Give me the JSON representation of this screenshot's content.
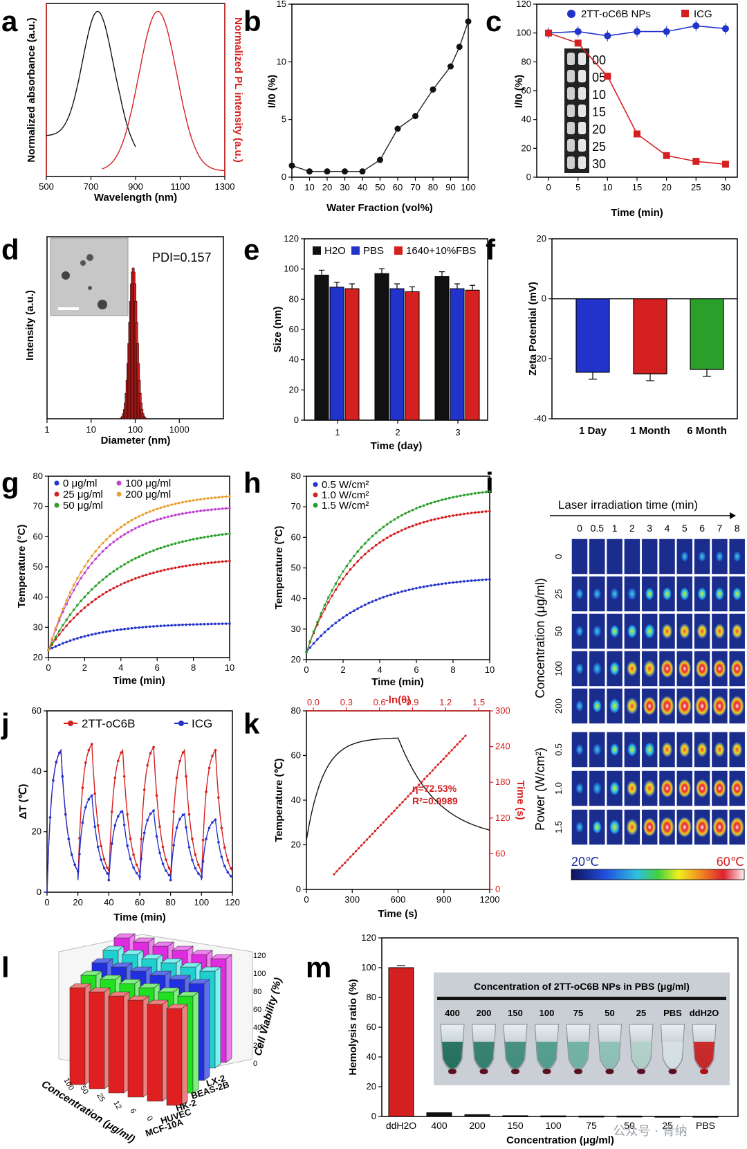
{
  "panels": [
    "a",
    "b",
    "c",
    "d",
    "e",
    "f",
    "g",
    "h",
    "i",
    "j",
    "k",
    "l",
    "m"
  ],
  "colors": {
    "red": "#d42020",
    "blue": "#2233cc",
    "green": "#2aa02a",
    "black": "#111111",
    "orange": "#e8a030",
    "purple": "#c040d0"
  },
  "chart_data": [
    {
      "id": "a",
      "type": "line",
      "xlabel": "Wavelength (nm)",
      "ylabel_left": "Normalized absorbance (a.u.)",
      "ylabel_right": "Normalized PL intensity (a.u.)",
      "xlim": [
        500,
        1300
      ],
      "xticks": [
        500,
        700,
        900,
        1100,
        1300
      ],
      "series": [
        {
          "name": "Absorbance",
          "center": 730,
          "width": 95,
          "range": [
            500,
            900
          ],
          "base": 0.22
        },
        {
          "name": "PL",
          "center": 1000,
          "width": 120,
          "range": [
            750,
            1300
          ],
          "base": 0.0
        }
      ]
    },
    {
      "id": "b",
      "type": "line",
      "xlabel": "Water Fraction (vol%)",
      "ylabel": "I/I0 (%)",
      "xlim": [
        0,
        100
      ],
      "ylim": [
        0,
        15
      ],
      "xticks": [
        0,
        10,
        20,
        30,
        40,
        50,
        60,
        70,
        80,
        90,
        100
      ],
      "yticks": [
        0,
        5,
        10,
        15
      ],
      "x": [
        0,
        10,
        20,
        30,
        40,
        50,
        60,
        70,
        80,
        90,
        95,
        100
      ],
      "values": [
        1.0,
        0.5,
        0.5,
        0.5,
        0.5,
        1.5,
        4.2,
        5.3,
        7.6,
        9.6,
        11.3,
        13.5
      ]
    },
    {
      "id": "c",
      "type": "line",
      "xlabel": "Time (min)",
      "ylabel": "I/I0 (%)",
      "xlim": [
        0,
        30
      ],
      "ylim": [
        0,
        120
      ],
      "xticks": [
        0,
        5,
        10,
        15,
        20,
        25,
        30
      ],
      "yticks": [
        0,
        20,
        40,
        60,
        80,
        100,
        120
      ],
      "x": [
        0,
        5,
        10,
        15,
        20,
        25,
        30
      ],
      "series": [
        {
          "name": "2TT-oC6B NPs",
          "values": [
            100,
            101,
            98,
            101,
            101,
            105,
            103
          ]
        },
        {
          "name": "ICG",
          "values": [
            100,
            93,
            70,
            30,
            15,
            11,
            9
          ]
        }
      ],
      "inset_labels": [
        "00",
        "05",
        "10",
        "15",
        "20",
        "25",
        "30"
      ]
    },
    {
      "id": "d",
      "type": "bar",
      "xlabel": "Diameter (nm)",
      "ylabel": "Intensity (a.u.)",
      "xticks": [
        "1",
        "10",
        "100",
        "1000"
      ],
      "annotation": "PDI=0.157",
      "peak_nm": 90
    },
    {
      "id": "e",
      "type": "bar",
      "xlabel": "Time (day)",
      "ylabel": "Size (nm)",
      "ylim": [
        0,
        120
      ],
      "yticks": [
        0,
        20,
        40,
        60,
        80,
        100,
        120
      ],
      "categories": [
        "1",
        "2",
        "3"
      ],
      "series": [
        {
          "name": "H2O",
          "values": [
            96,
            97,
            95
          ]
        },
        {
          "name": "PBS",
          "values": [
            88,
            87,
            87
          ]
        },
        {
          "name": "1640+10%FBS",
          "values": [
            87,
            85,
            86
          ]
        }
      ]
    },
    {
      "id": "f",
      "type": "bar",
      "xlabel": "",
      "ylabel": "Zeta Potential (mV)",
      "ylim": [
        -40,
        20
      ],
      "yticks": [
        -40,
        -20,
        0,
        20
      ],
      "categories": [
        "1 Day",
        "1 Month",
        "6 Month"
      ],
      "values": [
        -24.5,
        -25,
        -23.5
      ]
    },
    {
      "id": "g",
      "type": "line",
      "xlabel": "Time (min)",
      "ylabel": "Temperature (°C)",
      "xlim": [
        0,
        10
      ],
      "ylim": [
        20,
        80
      ],
      "xticks": [
        0,
        2,
        4,
        6,
        8,
        10
      ],
      "yticks": [
        20,
        30,
        40,
        50,
        60,
        70,
        80
      ],
      "series": [
        {
          "name": "0 μg/ml",
          "plateau": 31.5,
          "k": 0.35
        },
        {
          "name": "25 μg/ml",
          "plateau": 53.5,
          "k": 0.3
        },
        {
          "name": "50 μg/ml",
          "plateau": 63.5,
          "k": 0.28
        },
        {
          "name": "100 μg/ml",
          "plateau": 70.5,
          "k": 0.38
        },
        {
          "name": "200 μg/ml",
          "plateau": 74.5,
          "k": 0.38
        }
      ]
    },
    {
      "id": "h",
      "type": "line",
      "xlabel": "Time (min)",
      "ylabel": "Temperature (°C)",
      "xlim": [
        0,
        10
      ],
      "ylim": [
        20,
        80
      ],
      "xticks": [
        0,
        2,
        4,
        6,
        8,
        10
      ],
      "yticks": [
        20,
        30,
        40,
        50,
        60,
        70,
        80
      ],
      "series": [
        {
          "name": "0.5 W/cm²",
          "plateau": 47.5,
          "k": 0.3
        },
        {
          "name": "1.0 W/cm²",
          "plateau": 70.0,
          "k": 0.35
        },
        {
          "name": "1.5 W/cm²",
          "plateau": 77.0,
          "k": 0.33
        }
      ]
    },
    {
      "id": "i",
      "type": "heatmap",
      "title": "Laser irradiation time (min)",
      "times": [
        "0",
        "0.5",
        "1",
        "2",
        "3",
        "4",
        "5",
        "6",
        "7",
        "8"
      ],
      "ylabel_top": "Concentration (μg/ml)",
      "rows_top": [
        "0",
        "25",
        "50",
        "100",
        "200"
      ],
      "ylabel_bottom": "Power (W/cm²)",
      "rows_bottom": [
        "0.5",
        "1.0",
        "1.5"
      ],
      "scale_min": "20℃",
      "scale_max": "60℃"
    },
    {
      "id": "j",
      "type": "line",
      "xlabel": "Time (min)",
      "ylabel": "ΔT (℃)",
      "xlim": [
        0,
        120
      ],
      "ylim": [
        0,
        60
      ],
      "xticks": [
        0,
        20,
        40,
        60,
        80,
        100,
        120
      ],
      "yticks": [
        0,
        20,
        40,
        60
      ],
      "series": [
        {
          "name": "2TT-oC6B",
          "peaks": [
            47,
            49,
            47,
            48,
            47,
            47
          ]
        },
        {
          "name": "ICG",
          "peaks": [
            47,
            32,
            27,
            27,
            26,
            24
          ]
        }
      ]
    },
    {
      "id": "k",
      "type": "line",
      "xlabel": "Time (s)",
      "ylabel": "Temperature (℃)",
      "x2label": "-ln(θ)",
      "y2label": "Time (s)",
      "xlim": [
        0,
        1200
      ],
      "ylim": [
        0,
        80
      ],
      "xticks": [
        0,
        300,
        600,
        900,
        1200
      ],
      "yticks": [
        0,
        20,
        40,
        60,
        80
      ],
      "x2ticks": [
        "0.0",
        "0.3",
        "0.6",
        "0.9",
        "1.2",
        "1.5"
      ],
      "y2ticks": [
        0,
        60,
        120,
        180,
        240,
        300
      ],
      "annotation": [
        "η=72.53%",
        "R²=0.9989"
      ]
    },
    {
      "id": "l",
      "type": "bar",
      "zlabel": "Cell Viability (%)",
      "xlabel": "Concentration (μg/ml)",
      "cells": [
        "LX-2",
        "BEAS-2B",
        "HK-2",
        "HUVEC",
        "MCF-10A"
      ],
      "zticks": [
        "0",
        "20",
        "40",
        "60",
        "80",
        "100",
        "120"
      ],
      "conc_ticks": [
        "100",
        "50",
        "25",
        "12",
        "6",
        "0"
      ]
    },
    {
      "id": "m",
      "type": "bar",
      "xlabel": "Concentration (μg/ml)",
      "ylabel": "Hemolysis ratio (%)",
      "ylim": [
        0,
        120
      ],
      "yticks": [
        0,
        20,
        40,
        60,
        80,
        100,
        120
      ],
      "categories": [
        "ddH2O",
        "400",
        "200",
        "150",
        "100",
        "75",
        "50",
        "25",
        "PBS"
      ],
      "values": [
        100,
        2.5,
        1.2,
        0.5,
        0.4,
        0.3,
        0.3,
        0.2,
        0.2
      ],
      "inset_title": "Concentration of 2TT-oC6B NPs in PBS (μg/ml)",
      "inset_labels": [
        "400",
        "200",
        "150",
        "100",
        "75",
        "50",
        "25",
        "PBS",
        "ddH2O"
      ]
    }
  ],
  "watermark": "公众号 · 青纳"
}
